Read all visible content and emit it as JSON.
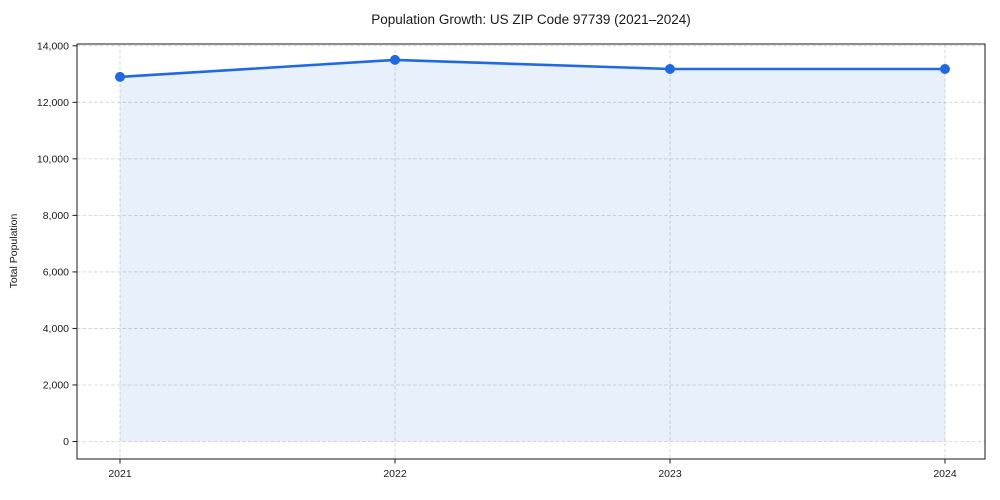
{
  "figure": {
    "background": "#ffffff"
  },
  "chart_data": {
    "type": "line",
    "title": "Population Growth: US ZIP Code 97739 (2021–2024)",
    "xlabel": "",
    "ylabel": "Total Population",
    "categories": [
      "2021",
      "2022",
      "2023",
      "2024"
    ],
    "series": [
      {
        "name": "Total Population",
        "values": [
          12900,
          13500,
          13180,
          13180
        ]
      }
    ],
    "yticks": [
      0,
      2000,
      4000,
      6000,
      8000,
      10000,
      12000,
      14000
    ],
    "ylim": [
      0,
      14000
    ],
    "grid": "dashed-both-axes",
    "legend": "none",
    "marker": "circle",
    "area_fill": true,
    "colors": {
      "line": "#2169e0",
      "marker": "#2169e0",
      "fill": "rgba(33,105,224,0.10)",
      "grid": "#cfcfcf",
      "axis": "#1a1a1a",
      "text": "#1a1a1a",
      "background": "#ffffff"
    }
  }
}
